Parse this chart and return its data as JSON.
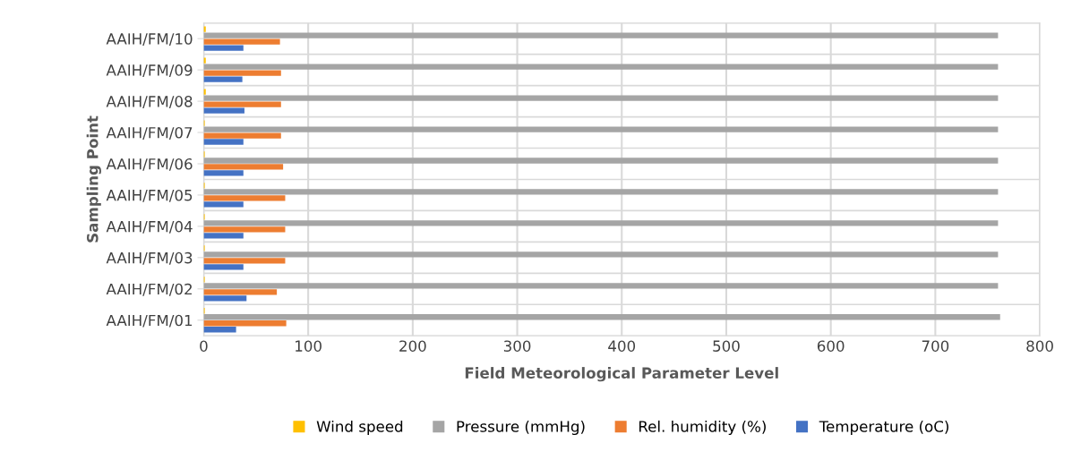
{
  "chart_data": {
    "type": "bar",
    "orientation": "horizontal",
    "xlabel": "Field Meteorological Parameter Level",
    "ylabel": "Sampling Point",
    "categories": [
      "AAIH/FM/10",
      "AAIH/FM/09",
      "AAIH/FM/08",
      "AAIH/FM/07",
      "AAIH/FM/06",
      "AAIH/FM/05",
      "AAIH/FM/04",
      "AAIH/FM/03",
      "AAIH/FM/02",
      "AAIH/FM/01"
    ],
    "series": [
      {
        "name": "Wind speed",
        "color": "#ffc000",
        "values": [
          2,
          2,
          2,
          1,
          1,
          1,
          1,
          1,
          1,
          1
        ]
      },
      {
        "name": "Pressure (mmHg)",
        "color": "#a5a5a5",
        "values": [
          760,
          760,
          760,
          760,
          760,
          760,
          760,
          760,
          760,
          762
        ]
      },
      {
        "name": "Rel. humidity (%)",
        "color": "#ed7d31",
        "values": [
          73,
          74,
          74,
          74,
          76,
          78,
          78,
          78,
          70,
          79
        ]
      },
      {
        "name": "Temperature (oC)",
        "color": "#4472c4",
        "values": [
          38,
          37,
          39,
          38,
          38,
          38,
          38,
          38,
          41,
          31
        ]
      }
    ],
    "xlim": [
      0,
      800
    ],
    "xticks": [
      0,
      100,
      200,
      300,
      400,
      500,
      600,
      700,
      800
    ],
    "grid": "x",
    "legend": "bottom"
  }
}
